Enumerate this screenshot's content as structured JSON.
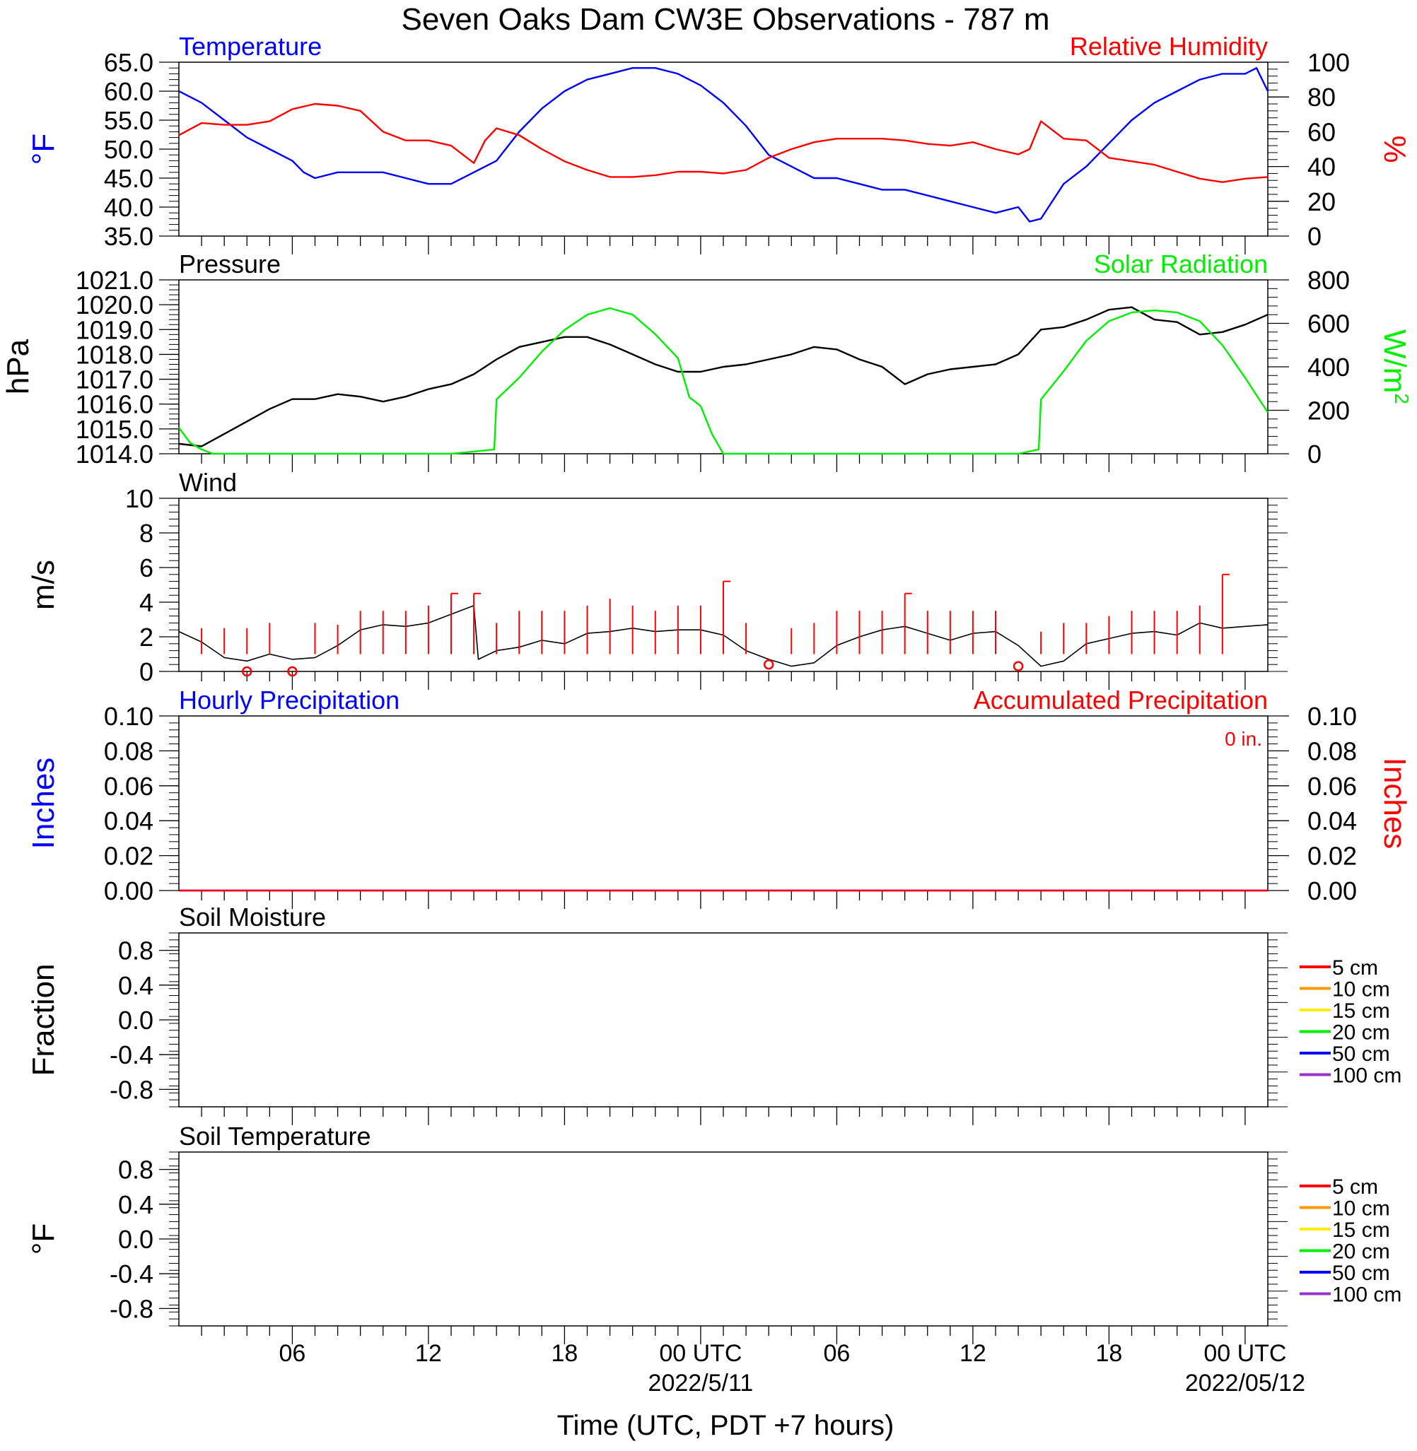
{
  "title": "Seven Oaks Dam CW3E Observations - 787 m",
  "x_axis": {
    "label": "Time (UTC, PDT +7 hours)",
    "ticks": [
      {
        "hour": 6,
        "label": "06"
      },
      {
        "hour": 12,
        "label": "12"
      },
      {
        "hour": 18,
        "label": "18"
      },
      {
        "hour": 24,
        "label": "00 UTC",
        "date": "2022/5/11"
      },
      {
        "hour": 30,
        "label": "06"
      },
      {
        "hour": 36,
        "label": "12"
      },
      {
        "hour": 42,
        "label": "18"
      },
      {
        "hour": 48,
        "label": "00 UTC",
        "date": "2022/05/12"
      }
    ],
    "range_hours": [
      1,
      49
    ]
  },
  "colors": {
    "blue": "#0000ff",
    "red": "#ff0000",
    "green": "#00ee00",
    "black": "#000000",
    "orange": "#ff9900",
    "yellow": "#ffee00",
    "purple": "#9933cc"
  },
  "chart_data": [
    {
      "type": "line",
      "name": "temperature-humidity",
      "left_title": "Temperature",
      "right_title": "Relative Humidity",
      "left_unit": "°F",
      "right_unit": "%",
      "left_ylim": [
        35,
        65
      ],
      "right_ylim": [
        0,
        100
      ],
      "left_ticks": [
        "35.0",
        "40.0",
        "45.0",
        "50.0",
        "55.0",
        "60.0",
        "65.0"
      ],
      "right_ticks": [
        "0",
        "20",
        "40",
        "60",
        "80",
        "100"
      ],
      "series": [
        {
          "name": "Temperature",
          "axis": "left",
          "color": "#0000ff",
          "x": [
            1,
            2,
            3,
            4,
            5,
            6,
            6.5,
            7,
            8,
            9,
            10,
            11,
            12,
            13,
            14,
            15,
            16,
            17,
            18,
            19,
            20,
            21,
            22,
            23,
            24,
            25,
            26,
            27,
            28,
            29,
            30,
            31,
            32,
            33,
            34,
            35,
            36,
            37,
            38,
            38.5,
            39,
            40,
            41,
            42,
            43,
            44,
            45,
            46,
            47,
            48,
            48.5,
            49
          ],
          "y": [
            60,
            58,
            55,
            52,
            50,
            48,
            46,
            45,
            46,
            46,
            46,
            45,
            44,
            44,
            46,
            48,
            53,
            57,
            60,
            62,
            63,
            64,
            64,
            63,
            61,
            58,
            54,
            49,
            47,
            45,
            45,
            44,
            43,
            43,
            42,
            41,
            40,
            39,
            40,
            37.5,
            38,
            44,
            47,
            51,
            55,
            58,
            60,
            62,
            63,
            63,
            64,
            60
          ]
        },
        {
          "name": "Relative Humidity",
          "axis": "right",
          "color": "#ff0000",
          "x": [
            1,
            2,
            3,
            4,
            5,
            6,
            7,
            8,
            9,
            10,
            11,
            12,
            13,
            14,
            14.5,
            15,
            16,
            17,
            18,
            19,
            20,
            21,
            22,
            23,
            24,
            25,
            26,
            27,
            28,
            29,
            30,
            31,
            32,
            33,
            34,
            35,
            36,
            37,
            38,
            38.5,
            39,
            40,
            41,
            42,
            43,
            44,
            45,
            46,
            47,
            48,
            49
          ],
          "y": [
            58,
            65,
            64,
            64,
            66,
            73,
            76,
            75,
            72,
            60,
            55,
            55,
            52,
            42,
            55,
            62,
            58,
            50,
            43,
            38,
            34,
            34,
            35,
            37,
            37,
            36,
            38,
            45,
            50,
            54,
            56,
            56,
            56,
            55,
            53,
            52,
            54,
            50,
            47,
            50,
            66,
            56,
            55,
            45,
            43,
            41,
            37,
            33,
            31,
            33,
            34
          ]
        }
      ]
    },
    {
      "type": "line",
      "name": "pressure-solar",
      "left_title": "Pressure",
      "right_title": "Solar Radiation",
      "left_unit": "hPa",
      "right_unit": "W/m",
      "right_unit_sup": "2",
      "left_ylim": [
        1014,
        1021
      ],
      "right_ylim": [
        0,
        800
      ],
      "left_ticks": [
        "1014.0",
        "1015.0",
        "1016.0",
        "1017.0",
        "1018.0",
        "1019.0",
        "1020.0",
        "1021.0"
      ],
      "right_ticks": [
        "0",
        "200",
        "400",
        "600",
        "800"
      ],
      "series": [
        {
          "name": "Pressure",
          "axis": "left",
          "color": "#000000",
          "x": [
            1,
            2,
            3,
            4,
            5,
            6,
            7,
            8,
            9,
            10,
            11,
            12,
            13,
            14,
            15,
            16,
            17,
            18,
            19,
            20,
            21,
            22,
            23,
            24,
            25,
            26,
            27,
            28,
            29,
            30,
            31,
            32,
            33,
            34,
            35,
            36,
            37,
            38,
            39,
            40,
            41,
            42,
            43,
            44,
            45,
            46,
            47,
            48,
            49
          ],
          "y": [
            1014.4,
            1014.3,
            1014.8,
            1015.3,
            1015.8,
            1016.2,
            1016.2,
            1016.4,
            1016.3,
            1016.1,
            1016.3,
            1016.6,
            1016.8,
            1017.2,
            1017.8,
            1018.3,
            1018.5,
            1018.7,
            1018.7,
            1018.4,
            1018.0,
            1017.6,
            1017.3,
            1017.3,
            1017.5,
            1017.6,
            1017.8,
            1018.0,
            1018.3,
            1018.2,
            1017.8,
            1017.5,
            1016.8,
            1017.2,
            1017.4,
            1017.5,
            1017.6,
            1018.0,
            1019.0,
            1019.1,
            1019.4,
            1019.8,
            1019.9,
            1019.4,
            1019.3,
            1018.8,
            1018.9,
            1019.2,
            1019.6
          ]
        },
        {
          "name": "Solar Radiation",
          "axis": "right",
          "color": "#00ee00",
          "x": [
            1,
            1.5,
            2,
            2.5,
            3,
            4,
            5,
            6,
            7,
            8,
            9,
            10,
            11,
            12,
            13,
            14,
            14.9,
            15,
            16,
            17,
            18,
            19,
            20,
            21,
            22,
            23,
            23.5,
            24,
            24.5,
            25,
            30,
            35,
            38,
            38.9,
            39,
            40,
            41,
            42,
            43,
            44,
            45,
            46,
            47,
            48,
            49
          ],
          "y": [
            120,
            50,
            20,
            0,
            0,
            0,
            0,
            0,
            0,
            0,
            0,
            0,
            0,
            0,
            0,
            10,
            20,
            250,
            350,
            470,
            570,
            640,
            670,
            640,
            550,
            440,
            260,
            220,
            90,
            0,
            0,
            0,
            0,
            20,
            250,
            380,
            520,
            610,
            650,
            660,
            650,
            610,
            500,
            350,
            190
          ]
        }
      ]
    },
    {
      "type": "line",
      "name": "wind",
      "left_title": "Wind",
      "left_unit": "m/s",
      "left_ylim": [
        0,
        10
      ],
      "left_ticks": [
        "0",
        "2",
        "4",
        "6",
        "8",
        "10"
      ],
      "series": [
        {
          "name": "Wind",
          "axis": "left",
          "color": "#000000",
          "x": [
            1,
            2,
            3,
            4,
            5,
            6,
            7,
            8,
            9,
            10,
            11,
            12,
            13,
            14,
            14.2,
            15,
            16,
            17,
            18,
            19,
            20,
            21,
            22,
            23,
            24,
            25,
            26,
            27,
            28,
            29,
            30,
            31,
            32,
            33,
            34,
            35,
            36,
            37,
            38,
            39,
            40,
            41,
            42,
            43,
            44,
            45,
            46,
            47,
            48,
            49
          ],
          "y": [
            2.3,
            1.7,
            0.8,
            0.6,
            1.0,
            0.7,
            0.8,
            1.5,
            2.4,
            2.7,
            2.6,
            2.8,
            3.3,
            3.8,
            0.7,
            1.2,
            1.4,
            1.8,
            1.6,
            2.2,
            2.3,
            2.5,
            2.3,
            2.4,
            2.4,
            2.1,
            1.2,
            0.7,
            0.3,
            0.5,
            1.5,
            2.0,
            2.4,
            2.6,
            2.2,
            1.8,
            2.2,
            2.3,
            1.5,
            0.3,
            0.6,
            1.6,
            1.9,
            2.2,
            2.3,
            2.1,
            2.8,
            2.5,
            2.6,
            2.7
          ]
        }
      ],
      "barbs": [
        {
          "hour": 2,
          "speed": 2.5,
          "color": "#ff0000"
        },
        {
          "hour": 3,
          "speed": 2.5,
          "color": "#ff0000"
        },
        {
          "hour": 4,
          "speed": 2.5,
          "color": "#ff0000"
        },
        {
          "hour": 5,
          "speed": 2.8,
          "color": "#ff0000"
        },
        {
          "hour": 7,
          "speed": 2.8,
          "color": "#ff0000"
        },
        {
          "hour": 8,
          "speed": 2.7,
          "color": "#ff0000"
        },
        {
          "hour": 9,
          "speed": 3.5,
          "color": "#ff0000"
        },
        {
          "hour": 10,
          "speed": 3.5,
          "color": "#ff0000"
        },
        {
          "hour": 11,
          "speed": 3.5,
          "color": "#ff0000"
        },
        {
          "hour": 12,
          "speed": 3.8,
          "color": "#ff0000"
        },
        {
          "hour": 13,
          "speed": 4.5,
          "color": "#ff0000"
        },
        {
          "hour": 14,
          "speed": 4.5,
          "color": "#ff0000"
        },
        {
          "hour": 15,
          "speed": 2.8,
          "color": "#ff0000"
        },
        {
          "hour": 16,
          "speed": 3.5,
          "color": "#ff0000"
        },
        {
          "hour": 17,
          "speed": 3.5,
          "color": "#ff0000"
        },
        {
          "hour": 18,
          "speed": 3.5,
          "color": "#ff0000"
        },
        {
          "hour": 19,
          "speed": 3.8,
          "color": "#ff0000"
        },
        {
          "hour": 20,
          "speed": 4.2,
          "color": "#ff0000"
        },
        {
          "hour": 21,
          "speed": 3.8,
          "color": "#ff0000"
        },
        {
          "hour": 22,
          "speed": 3.5,
          "color": "#ff0000"
        },
        {
          "hour": 23,
          "speed": 3.8,
          "color": "#ff0000"
        },
        {
          "hour": 24,
          "speed": 3.8,
          "color": "#ff0000"
        },
        {
          "hour": 25,
          "speed": 5.2,
          "color": "#ff0000"
        },
        {
          "hour": 26,
          "speed": 2.8,
          "color": "#ff0000"
        },
        {
          "hour": 28,
          "speed": 2.5,
          "color": "#ff0000"
        },
        {
          "hour": 29,
          "speed": 2.8,
          "color": "#ff0000"
        },
        {
          "hour": 30,
          "speed": 3.5,
          "color": "#ff0000"
        },
        {
          "hour": 31,
          "speed": 3.5,
          "color": "#ff0000"
        },
        {
          "hour": 32,
          "speed": 3.5,
          "color": "#ff0000"
        },
        {
          "hour": 33,
          "speed": 4.5,
          "color": "#ff0000"
        },
        {
          "hour": 34,
          "speed": 3.5,
          "color": "#ff0000"
        },
        {
          "hour": 35,
          "speed": 3.5,
          "color": "#ff0000"
        },
        {
          "hour": 36,
          "speed": 3.5,
          "color": "#ff0000"
        },
        {
          "hour": 37,
          "speed": 3.5,
          "color": "#ff0000"
        },
        {
          "hour": 39,
          "speed": 2.3,
          "color": "#ff0000"
        },
        {
          "hour": 40,
          "speed": 2.8,
          "color": "#ff0000"
        },
        {
          "hour": 41,
          "speed": 2.8,
          "color": "#ff0000"
        },
        {
          "hour": 42,
          "speed": 3.2,
          "color": "#ff0000"
        },
        {
          "hour": 43,
          "speed": 3.5,
          "color": "#ff0000"
        },
        {
          "hour": 44,
          "speed": 3.5,
          "color": "#ff0000"
        },
        {
          "hour": 45,
          "speed": 3.5,
          "color": "#ff0000"
        },
        {
          "hour": 46,
          "speed": 3.8,
          "color": "#ff0000"
        },
        {
          "hour": 47,
          "speed": 5.6,
          "color": "#ff0000"
        }
      ],
      "calm": [
        {
          "hour": 4,
          "speed": 0
        },
        {
          "hour": 6,
          "speed": 0
        },
        {
          "hour": 27,
          "speed": 0.4
        },
        {
          "hour": 38,
          "speed": 0.3
        }
      ]
    },
    {
      "type": "line",
      "name": "precipitation",
      "left_title": "Hourly Precipitation",
      "right_title": "Accumulated Precipitation",
      "accum_label": "0 in.",
      "left_unit": "Inches",
      "right_unit": "Inches",
      "left_ylim": [
        0,
        0.1
      ],
      "right_ylim": [
        0,
        0.1
      ],
      "left_ticks": [
        "0.00",
        "0.02",
        "0.04",
        "0.06",
        "0.08",
        "0.10"
      ],
      "right_ticks": [
        "0.00",
        "0.02",
        "0.04",
        "0.06",
        "0.08",
        "0.10"
      ],
      "series": [
        {
          "name": "Hourly Precipitation",
          "axis": "left",
          "color": "#0000ff",
          "x": [
            1,
            49
          ],
          "y": [
            0,
            0
          ]
        },
        {
          "name": "Accumulated Precipitation",
          "axis": "right",
          "color": "#ff0000",
          "x": [
            1,
            49
          ],
          "y": [
            0,
            0
          ]
        }
      ]
    },
    {
      "type": "line",
      "name": "soil-moisture",
      "left_title": "Soil Moisture",
      "left_unit": "Fraction",
      "left_ylim": [
        -1,
        1
      ],
      "left_ticks": [
        "-0.8",
        "-0.4",
        "0.0",
        "0.4",
        "0.8"
      ],
      "legend": [
        {
          "name": "5 cm",
          "color": "#ff0000"
        },
        {
          "name": "10 cm",
          "color": "#ff9900"
        },
        {
          "name": "15 cm",
          "color": "#ffee00"
        },
        {
          "name": "20 cm",
          "color": "#00ee00"
        },
        {
          "name": "50 cm",
          "color": "#0000ff"
        },
        {
          "name": "100 cm",
          "color": "#9933cc"
        }
      ],
      "series": []
    },
    {
      "type": "line",
      "name": "soil-temperature",
      "left_title": "Soil Temperature",
      "left_unit": "°F",
      "left_ylim": [
        -1,
        1
      ],
      "left_ticks": [
        "-0.8",
        "-0.4",
        "0.0",
        "0.4",
        "0.8"
      ],
      "legend": [
        {
          "name": "5 cm",
          "color": "#ff0000"
        },
        {
          "name": "10 cm",
          "color": "#ff9900"
        },
        {
          "name": "15 cm",
          "color": "#ffee00"
        },
        {
          "name": "20 cm",
          "color": "#00ee00"
        },
        {
          "name": "50 cm",
          "color": "#0000ff"
        },
        {
          "name": "100 cm",
          "color": "#9933cc"
        }
      ],
      "series": []
    }
  ]
}
